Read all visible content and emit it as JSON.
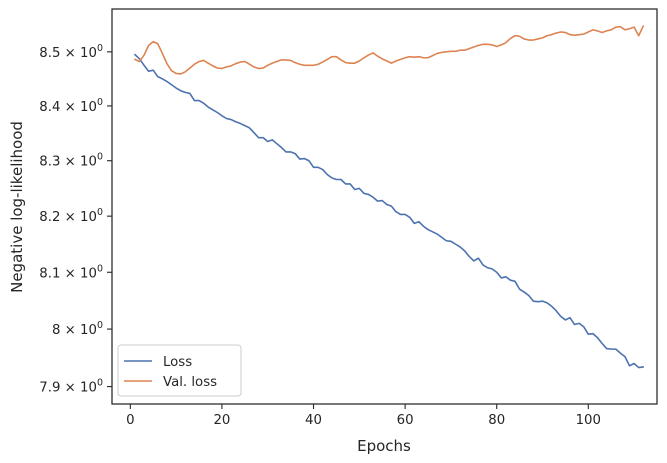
{
  "chart_data": {
    "type": "line",
    "title": "",
    "xlabel": "Epochs",
    "ylabel": "Negative log-likelihood",
    "y_scale": "log",
    "xlim": [
      -4,
      115
    ],
    "ylim": [
      7.87,
      8.58
    ],
    "x_ticks": [
      0,
      20,
      40,
      60,
      80,
      100
    ],
    "x_tick_labels": [
      "0",
      "20",
      "40",
      "60",
      "80",
      "100"
    ],
    "y_ticks": [
      7.9,
      8.0,
      8.1,
      8.2,
      8.3,
      8.4,
      8.5
    ],
    "y_tick_labels": [
      {
        "mantissa": "7.9",
        "base": "10",
        "exp": "0"
      },
      {
        "mantissa": "8",
        "base": "10",
        "exp": "0"
      },
      {
        "mantissa": "8.1",
        "base": "10",
        "exp": "0"
      },
      {
        "mantissa": "8.2",
        "base": "10",
        "exp": "0"
      },
      {
        "mantissa": "8.3",
        "base": "10",
        "exp": "0"
      },
      {
        "mantissa": "8.4",
        "base": "10",
        "exp": "0"
      },
      {
        "mantissa": "8.5",
        "base": "10",
        "exp": "0"
      }
    ],
    "grid": false,
    "legend_position": "lower-left",
    "series": [
      {
        "name": "Loss",
        "color": "#4c72b0",
        "x": [
          1,
          2,
          3,
          4,
          5,
          6,
          7,
          8,
          9,
          10,
          11,
          12,
          13,
          14,
          15,
          16,
          17,
          18,
          19,
          20,
          21,
          22,
          23,
          24,
          25,
          26,
          27,
          28,
          29,
          30,
          31,
          32,
          33,
          34,
          35,
          36,
          37,
          38,
          39,
          40,
          41,
          42,
          43,
          44,
          45,
          46,
          47,
          48,
          49,
          50,
          51,
          52,
          53,
          54,
          55,
          56,
          57,
          58,
          59,
          60,
          61,
          62,
          63,
          64,
          65,
          66,
          67,
          68,
          69,
          70,
          71,
          72,
          73,
          74,
          75,
          76,
          77,
          78,
          79,
          80,
          81,
          82,
          83,
          84,
          85,
          86,
          87,
          88,
          89,
          90,
          91,
          92,
          93,
          94,
          95,
          96,
          97,
          98,
          99,
          100,
          101,
          102,
          103,
          104,
          105,
          106,
          107,
          108,
          109,
          110,
          111,
          112
        ],
        "y": [
          8.495,
          8.487,
          8.475,
          8.464,
          8.466,
          8.454,
          8.45,
          8.445,
          8.439,
          8.433,
          8.428,
          8.425,
          8.423,
          8.41,
          8.41,
          8.405,
          8.398,
          8.393,
          8.388,
          8.382,
          8.377,
          8.375,
          8.371,
          8.368,
          8.364,
          8.36,
          8.351,
          8.342,
          8.342,
          8.335,
          8.338,
          8.331,
          8.324,
          8.316,
          8.316,
          8.313,
          8.303,
          8.304,
          8.3,
          8.288,
          8.288,
          8.284,
          8.275,
          8.269,
          8.266,
          8.266,
          8.258,
          8.258,
          8.248,
          8.25,
          8.241,
          8.239,
          8.234,
          8.227,
          8.228,
          8.221,
          8.218,
          8.208,
          8.203,
          8.203,
          8.198,
          8.187,
          8.19,
          8.182,
          8.176,
          8.172,
          8.168,
          8.162,
          8.156,
          8.155,
          8.15,
          8.145,
          8.138,
          8.128,
          8.12,
          8.125,
          8.113,
          8.108,
          8.106,
          8.1,
          8.09,
          8.092,
          8.086,
          8.084,
          8.07,
          8.065,
          8.059,
          8.049,
          8.048,
          8.049,
          8.046,
          8.04,
          8.032,
          8.022,
          8.016,
          8.02,
          8.008,
          8.01,
          8.004,
          7.991,
          7.992,
          7.985,
          7.975,
          7.966,
          7.965,
          7.965,
          7.958,
          7.952,
          7.936,
          7.94,
          7.933,
          7.934
        ]
      },
      {
        "name": "Val. loss",
        "color": "#dd8452",
        "x": [
          1,
          2,
          3,
          4,
          5,
          6,
          7,
          8,
          9,
          10,
          11,
          12,
          13,
          14,
          15,
          16,
          17,
          18,
          19,
          20,
          21,
          22,
          23,
          24,
          25,
          26,
          27,
          28,
          29,
          30,
          31,
          32,
          33,
          34,
          35,
          36,
          37,
          38,
          39,
          40,
          41,
          42,
          43,
          44,
          45,
          46,
          47,
          48,
          49,
          50,
          51,
          52,
          53,
          54,
          55,
          56,
          57,
          58,
          59,
          60,
          61,
          62,
          63,
          64,
          65,
          66,
          67,
          68,
          69,
          70,
          71,
          72,
          73,
          74,
          75,
          76,
          77,
          78,
          79,
          80,
          81,
          82,
          83,
          84,
          85,
          86,
          87,
          88,
          89,
          90,
          91,
          92,
          93,
          94,
          95,
          96,
          97,
          98,
          99,
          100,
          101,
          102,
          103,
          104,
          105,
          106,
          107,
          108,
          109,
          110,
          111,
          112
        ],
        "y": [
          8.486,
          8.482,
          8.494,
          8.512,
          8.519,
          8.515,
          8.497,
          8.478,
          8.465,
          8.46,
          8.459,
          8.463,
          8.47,
          8.477,
          8.482,
          8.484,
          8.479,
          8.474,
          8.47,
          8.469,
          8.472,
          8.474,
          8.478,
          8.481,
          8.482,
          8.477,
          8.472,
          8.469,
          8.47,
          8.475,
          8.479,
          8.482,
          8.485,
          8.485,
          8.484,
          8.48,
          8.477,
          8.475,
          8.475,
          8.475,
          8.477,
          8.481,
          8.486,
          8.491,
          8.491,
          8.485,
          8.48,
          8.479,
          8.479,
          8.483,
          8.489,
          8.494,
          8.498,
          8.492,
          8.487,
          8.483,
          8.479,
          8.483,
          8.486,
          8.489,
          8.491,
          8.49,
          8.491,
          8.489,
          8.489,
          8.493,
          8.497,
          8.499,
          8.5,
          8.501,
          8.501,
          8.503,
          8.503,
          8.506,
          8.509,
          8.512,
          8.514,
          8.514,
          8.513,
          8.51,
          8.513,
          8.517,
          8.525,
          8.53,
          8.529,
          8.524,
          8.522,
          8.522,
          8.524,
          8.526,
          8.53,
          8.532,
          8.535,
          8.537,
          8.536,
          8.532,
          8.531,
          8.532,
          8.533,
          8.537,
          8.541,
          8.539,
          8.536,
          8.539,
          8.541,
          8.546,
          8.547,
          8.541,
          8.543,
          8.546,
          8.53,
          8.548
        ]
      }
    ]
  }
}
